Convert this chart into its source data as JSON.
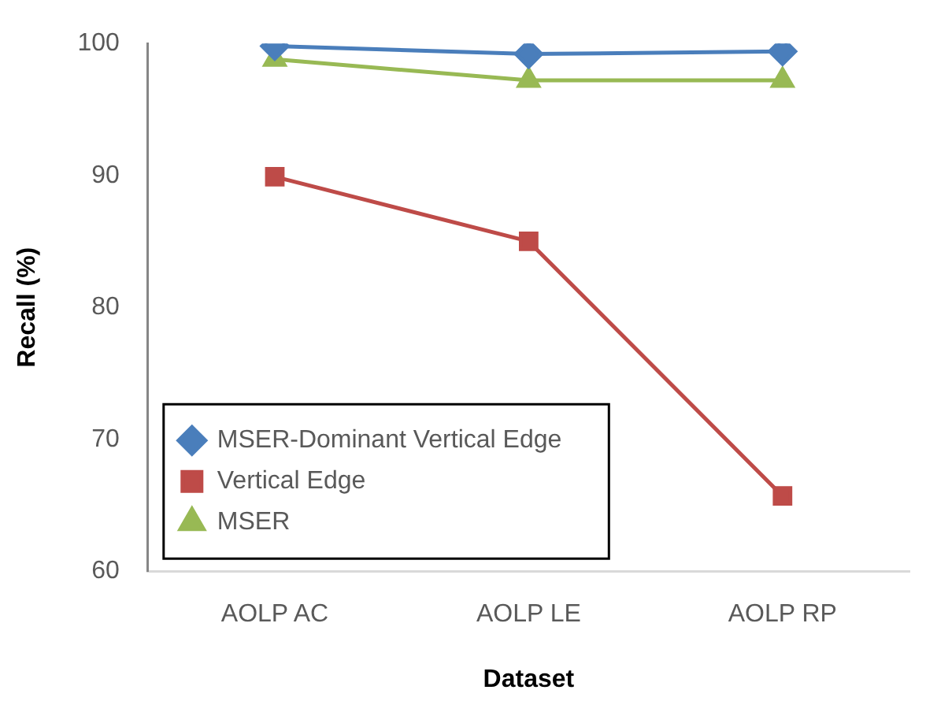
{
  "chart_data": {
    "type": "line",
    "xlabel": "Dataset",
    "ylabel": "Recall (%)",
    "categories": [
      "AOLP AC",
      "AOLP LE",
      "AOLP RP"
    ],
    "series": [
      {
        "name": "MSER-Dominant Vertical Edge",
        "color": "#4a7ebb",
        "marker": "diamond",
        "values": [
          99.8,
          99.2,
          99.4
        ]
      },
      {
        "name": "Vertical Edge",
        "color": "#be4b48",
        "marker": "square",
        "values": [
          89.9,
          85.0,
          65.7
        ]
      },
      {
        "name": "MSER",
        "color": "#98b954",
        "marker": "triangle",
        "values": [
          98.8,
          97.2,
          97.2
        ]
      }
    ],
    "ylim": [
      60,
      100
    ],
    "yticks": [
      60,
      70,
      80,
      90,
      100
    ],
    "grid": false,
    "legend": "bottom left"
  }
}
